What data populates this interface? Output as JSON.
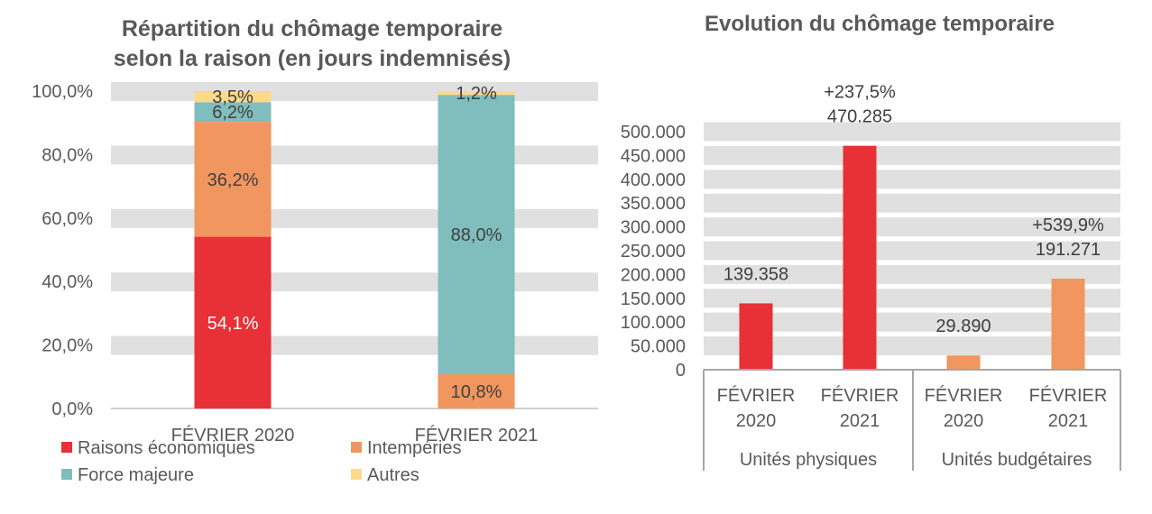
{
  "chart_data": [
    {
      "type": "bar",
      "stacked": true,
      "title": "Répartition du chômage temporaire selon la raison (en jours indemnisés)",
      "title_lines": [
        "Répartition du chômage temporaire",
        "selon la raison (en jours indemnisés)"
      ],
      "categories": [
        "FÉVRIER 2020",
        "FÉVRIER 2021"
      ],
      "series": [
        {
          "name": "Raisons économiques",
          "color": "#E83037",
          "values": [
            54.1,
            0
          ],
          "labels": [
            "54,1%",
            ""
          ],
          "label_color": "#ffffff"
        },
        {
          "name": "Intempéries",
          "color": "#F0965E",
          "values": [
            36.2,
            10.8
          ],
          "labels": [
            "36,2%",
            "10,8%"
          ],
          "label_color": "#404040"
        },
        {
          "name": "Force majeure",
          "color": "#80BDBD",
          "values": [
            6.2,
            88.0
          ],
          "labels": [
            "6,2%",
            "88,0%"
          ],
          "label_color": "#404040"
        },
        {
          "name": "Autres",
          "color": "#FDD98C",
          "values": [
            3.5,
            1.2
          ],
          "labels": [
            "3,5%",
            "1,2%"
          ],
          "label_color": "#404040"
        }
      ],
      "ylim": [
        0,
        100
      ],
      "yticks": [
        0,
        20,
        40,
        60,
        80,
        100
      ],
      "ytick_labels": [
        "0,0%",
        "20,0%",
        "40,0%",
        "60,0%",
        "80,0%",
        "100,0%"
      ],
      "grid": true,
      "legend_position": "bottom"
    },
    {
      "type": "bar",
      "title": "Evolution du chômage temporaire",
      "groups": [
        {
          "name": "Unités physiques",
          "categories": [
            "FÉVRIER 2020",
            "FÉVRIER 2021"
          ],
          "category_lines": [
            [
              "FÉVRIER",
              "2020"
            ],
            [
              "FÉVRIER",
              "2021"
            ]
          ],
          "values": [
            139358,
            470285
          ],
          "labels": [
            [
              "139.358"
            ],
            [
              "+237,5%",
              "470.285"
            ]
          ],
          "color": "#E83037"
        },
        {
          "name": "Unités budgétaires",
          "categories": [
            "FÉVRIER 2020",
            "FÉVRIER 2021"
          ],
          "category_lines": [
            [
              "FÉVRIER",
              "2020"
            ],
            [
              "FÉVRIER",
              "2021"
            ]
          ],
          "values": [
            29890,
            191271
          ],
          "labels": [
            [
              "29.890"
            ],
            [
              "+539,9%",
              "191.271"
            ]
          ],
          "color": "#F0965E"
        }
      ],
      "ylim": [
        0,
        500000
      ],
      "yticks": [
        0,
        50000,
        100000,
        150000,
        200000,
        250000,
        300000,
        350000,
        400000,
        450000,
        500000
      ],
      "ytick_labels": [
        "0",
        "50.000",
        "100.000",
        "150.000",
        "200.000",
        "250.000",
        "300.000",
        "350.000",
        "400.000",
        "450.000",
        "500.000"
      ],
      "grid": true
    }
  ]
}
